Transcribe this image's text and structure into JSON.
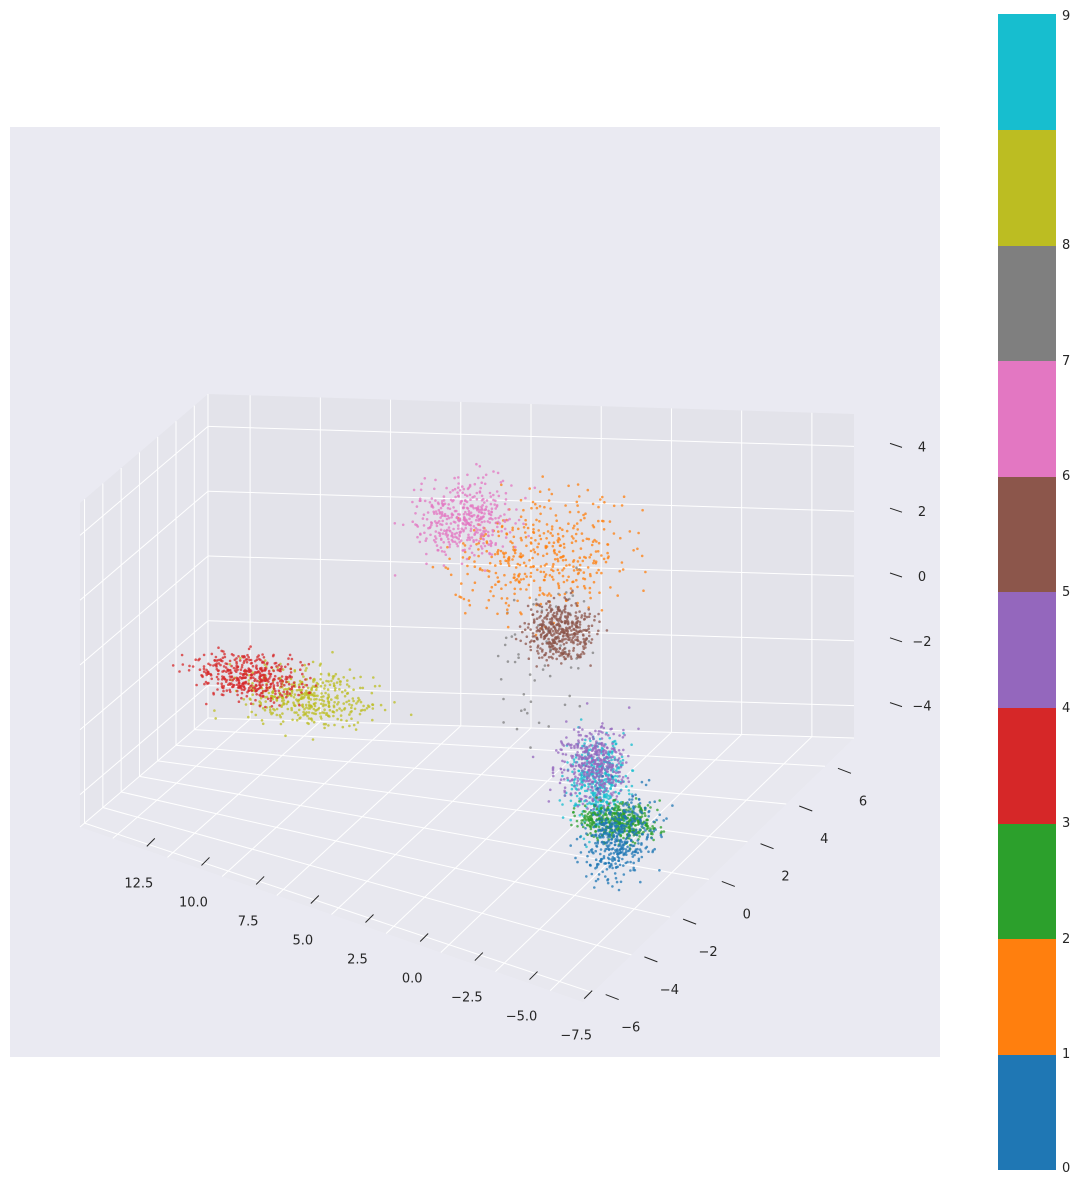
{
  "chart_data": {
    "type": "scatter",
    "projection": "3d",
    "title": "",
    "xlabel": "",
    "ylabel": "",
    "zlabel": "",
    "xlim": [
      -9,
      14
    ],
    "ylim": [
      -6.5,
      7.5
    ],
    "zlim": [
      -5,
      5
    ],
    "x_ticks": [
      "12.5",
      "10.0",
      "7.5",
      "5.0",
      "2.5",
      "0.0",
      "−2.5",
      "−5.0",
      "−7.5"
    ],
    "y_ticks": [
      "−6",
      "−4",
      "−2",
      "0",
      "2",
      "4",
      "6"
    ],
    "z_ticks": [
      "−4",
      "−2",
      "0",
      "2",
      "4"
    ],
    "grid": true,
    "colorbar": {
      "labels": [
        "0",
        "1",
        "2",
        "3",
        "4",
        "5",
        "6",
        "7",
        "8",
        "9"
      ],
      "colors": [
        "#1f77b4",
        "#ff7f0e",
        "#2ca02c",
        "#d62728",
        "#9467bd",
        "#8c564b",
        "#e377c2",
        "#7f7f7f",
        "#bcbd22",
        "#17becf"
      ]
    },
    "clusters": [
      {
        "label": "0",
        "color": "#1f77b4",
        "center": [
          -6.5,
          -1.5,
          -3.2
        ],
        "spread": [
          0.8,
          0.8,
          0.8
        ]
      },
      {
        "label": "1",
        "color": "#ff7f0e",
        "center": [
          0.0,
          3.5,
          2.2
        ],
        "spread": [
          2.2,
          1.5,
          1.1
        ]
      },
      {
        "label": "2",
        "color": "#2ca02c",
        "center": [
          -5.0,
          0.5,
          -4.0
        ],
        "spread": [
          1.0,
          0.5,
          0.3
        ]
      },
      {
        "label": "3",
        "color": "#d62728",
        "center": [
          10.5,
          2.0,
          -2.0
        ],
        "spread": [
          1.5,
          0.4,
          0.5
        ]
      },
      {
        "label": "4",
        "color": "#9467bd",
        "center": [
          -3.8,
          0.8,
          -2.6
        ],
        "spread": [
          0.9,
          0.7,
          0.8
        ]
      },
      {
        "label": "5",
        "color": "#8c564b",
        "center": [
          -1.8,
          1.8,
          0.8
        ],
        "spread": [
          0.9,
          0.5,
          0.6
        ]
      },
      {
        "label": "6",
        "color": "#e377c2",
        "center": [
          4.0,
          5.5,
          2.2
        ],
        "spread": [
          1.2,
          1.0,
          0.8
        ]
      },
      {
        "label": "7",
        "color": "#7f7f7f",
        "center": [
          -2.5,
          0.0,
          1.0
        ],
        "spread": [
          1.5,
          1.5,
          1.5
        ]
      },
      {
        "label": "8",
        "color": "#bcbd22",
        "center": [
          8.5,
          2.5,
          -2.6
        ],
        "spread": [
          1.8,
          0.7,
          0.6
        ]
      },
      {
        "label": "9",
        "color": "#17becf",
        "center": [
          -6.0,
          -2.0,
          -1.3
        ],
        "spread": [
          0.8,
          0.6,
          1.0
        ]
      }
    ]
  }
}
